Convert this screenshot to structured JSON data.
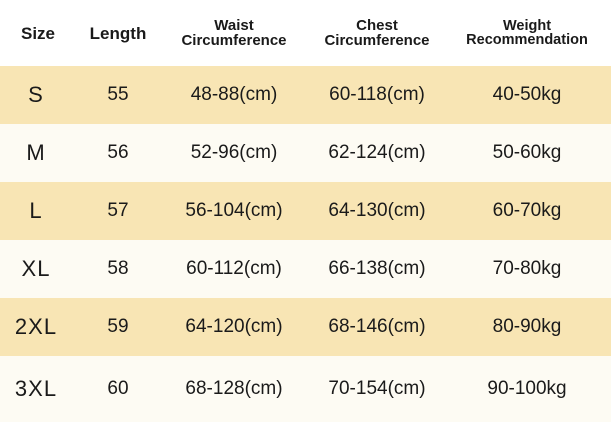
{
  "table": {
    "headers": {
      "size": "Size",
      "length": "Length",
      "waist_line1": "Waist",
      "waist_line2": "Circumference",
      "chest_line1": "Chest",
      "chest_line2": "Circumference",
      "weight_line1": "Weight",
      "weight_line2": "Recommendation"
    },
    "rows": [
      {
        "size": "S",
        "length": "55",
        "waist": "48-88(cm)",
        "chest": "60-118(cm)",
        "weight": "40-50kg"
      },
      {
        "size": "M",
        "length": "56",
        "waist": "52-96(cm)",
        "chest": "62-124(cm)",
        "weight": "50-60kg"
      },
      {
        "size": "L",
        "length": "57",
        "waist": "56-104(cm)",
        "chest": "64-130(cm)",
        "weight": "60-70kg"
      },
      {
        "size": "XL",
        "length": "58",
        "waist": "60-112(cm)",
        "chest": "66-138(cm)",
        "weight": "70-80kg"
      },
      {
        "size": "2XL",
        "length": "59",
        "waist": "64-120(cm)",
        "chest": "68-146(cm)",
        "weight": "80-90kg"
      },
      {
        "size": "3XL",
        "length": "60",
        "waist": "68-128(cm)",
        "chest": "70-154(cm)",
        "weight": "90-100kg"
      }
    ]
  },
  "colors": {
    "band_shade": "#f8e5b4",
    "band_plain": "#fdfbf3",
    "text": "#1a1a1a"
  }
}
